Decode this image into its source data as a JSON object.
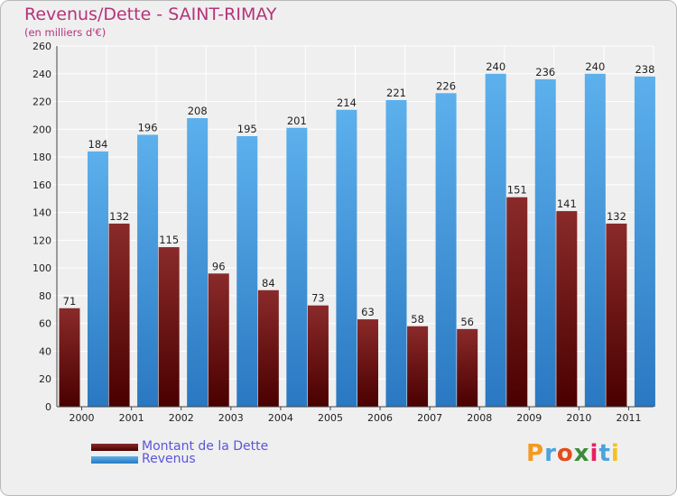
{
  "chart_data": {
    "type": "bar",
    "title": "Revenus/Dette - SAINT-RIMAY",
    "subtitle": "(en milliers d'€)",
    "categories": [
      "2000",
      "2001",
      "2002",
      "2003",
      "2004",
      "2005",
      "2006",
      "2007",
      "2008",
      "2009",
      "2010",
      "2011"
    ],
    "series": [
      {
        "name": "Montant de la Dette",
        "values": [
          71,
          132,
          115,
          96,
          84,
          73,
          63,
          58,
          56,
          151,
          141,
          132
        ],
        "color": "#7a1818"
      },
      {
        "name": "Revenus",
        "values": [
          184,
          196,
          208,
          195,
          201,
          214,
          221,
          226,
          240,
          236,
          240,
          238
        ],
        "color": "#52a6e3"
      }
    ],
    "ylim": [
      0,
      260
    ],
    "yticks": [
      0,
      20,
      40,
      60,
      80,
      100,
      120,
      140,
      160,
      180,
      200,
      220,
      240,
      260
    ],
    "grid": true,
    "legend": "bottom-left"
  },
  "legend": {
    "debt_label": "Montant de la Dette",
    "revenue_label": "Revenus"
  },
  "logo": {
    "letters": [
      "P",
      "r",
      "o",
      "x",
      "i",
      "t",
      "i"
    ],
    "colors": [
      "#f39a1f",
      "#4aa3df",
      "#e64a19",
      "#3a8c3a",
      "#e91e63",
      "#4aa3df",
      "#f3c21f"
    ]
  }
}
